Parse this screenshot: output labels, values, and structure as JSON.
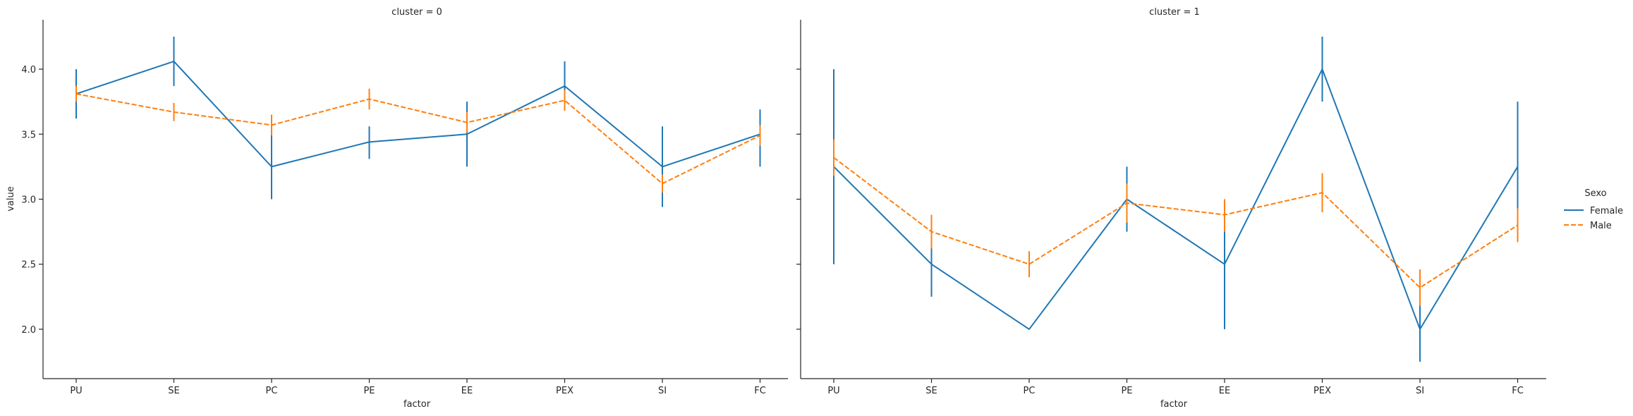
{
  "chart_data": [
    {
      "type": "line",
      "title": "cluster = 0",
      "xlabel": "factor",
      "ylabel": "value",
      "categories": [
        "PU",
        "SE",
        "PC",
        "PE",
        "EE",
        "PEX",
        "SI",
        "FC"
      ],
      "ylim": [
        1.62,
        4.38
      ],
      "yticks": [
        "2.0",
        "2.5",
        "3.0",
        "3.5",
        "4.0"
      ],
      "series": [
        {
          "name": "Female",
          "values": [
            3.81,
            4.06,
            3.25,
            3.44,
            3.5,
            3.87,
            3.25,
            3.5
          ],
          "err_low": [
            3.62,
            3.87,
            3.0,
            3.31,
            3.25,
            3.68,
            2.94,
            3.25
          ],
          "err_high": [
            4.0,
            4.25,
            3.5,
            3.56,
            3.75,
            4.06,
            3.56,
            3.69
          ]
        },
        {
          "name": "Male",
          "values": [
            3.81,
            3.67,
            3.57,
            3.77,
            3.59,
            3.76,
            3.12,
            3.49
          ],
          "err_low": [
            3.75,
            3.6,
            3.49,
            3.69,
            3.51,
            3.68,
            3.05,
            3.41
          ],
          "err_high": [
            3.87,
            3.74,
            3.65,
            3.85,
            3.67,
            3.84,
            3.19,
            3.57
          ]
        }
      ]
    },
    {
      "type": "line",
      "title": "cluster = 1",
      "xlabel": "factor",
      "ylabel": "",
      "categories": [
        "PU",
        "SE",
        "PC",
        "PE",
        "EE",
        "PEX",
        "SI",
        "FC"
      ],
      "ylim": [
        1.62,
        4.38
      ],
      "yticks": [
        "2.0",
        "2.5",
        "3.0",
        "3.5",
        "4.0"
      ],
      "series": [
        {
          "name": "Female",
          "values": [
            3.25,
            2.5,
            2.0,
            3.0,
            2.5,
            4.0,
            2.0,
            3.25
          ],
          "err_low": [
            2.5,
            2.25,
            2.0,
            2.75,
            2.0,
            3.75,
            1.75,
            2.75
          ],
          "err_high": [
            4.0,
            2.75,
            2.0,
            3.25,
            3.0,
            4.25,
            2.25,
            3.75
          ]
        },
        {
          "name": "Male",
          "values": [
            3.32,
            2.75,
            2.5,
            2.97,
            2.88,
            3.05,
            2.32,
            2.8
          ],
          "err_low": [
            3.18,
            2.62,
            2.4,
            2.82,
            2.75,
            2.9,
            2.18,
            2.67
          ],
          "err_high": [
            3.46,
            2.88,
            2.6,
            3.12,
            3.0,
            3.2,
            2.46,
            2.93
          ]
        }
      ]
    }
  ],
  "legend": {
    "title": "Sexo",
    "placement": "right",
    "entries": [
      "Female",
      "Male"
    ]
  },
  "colors": {
    "Female": "#1f77b4",
    "Male": "#ff7f0e"
  }
}
